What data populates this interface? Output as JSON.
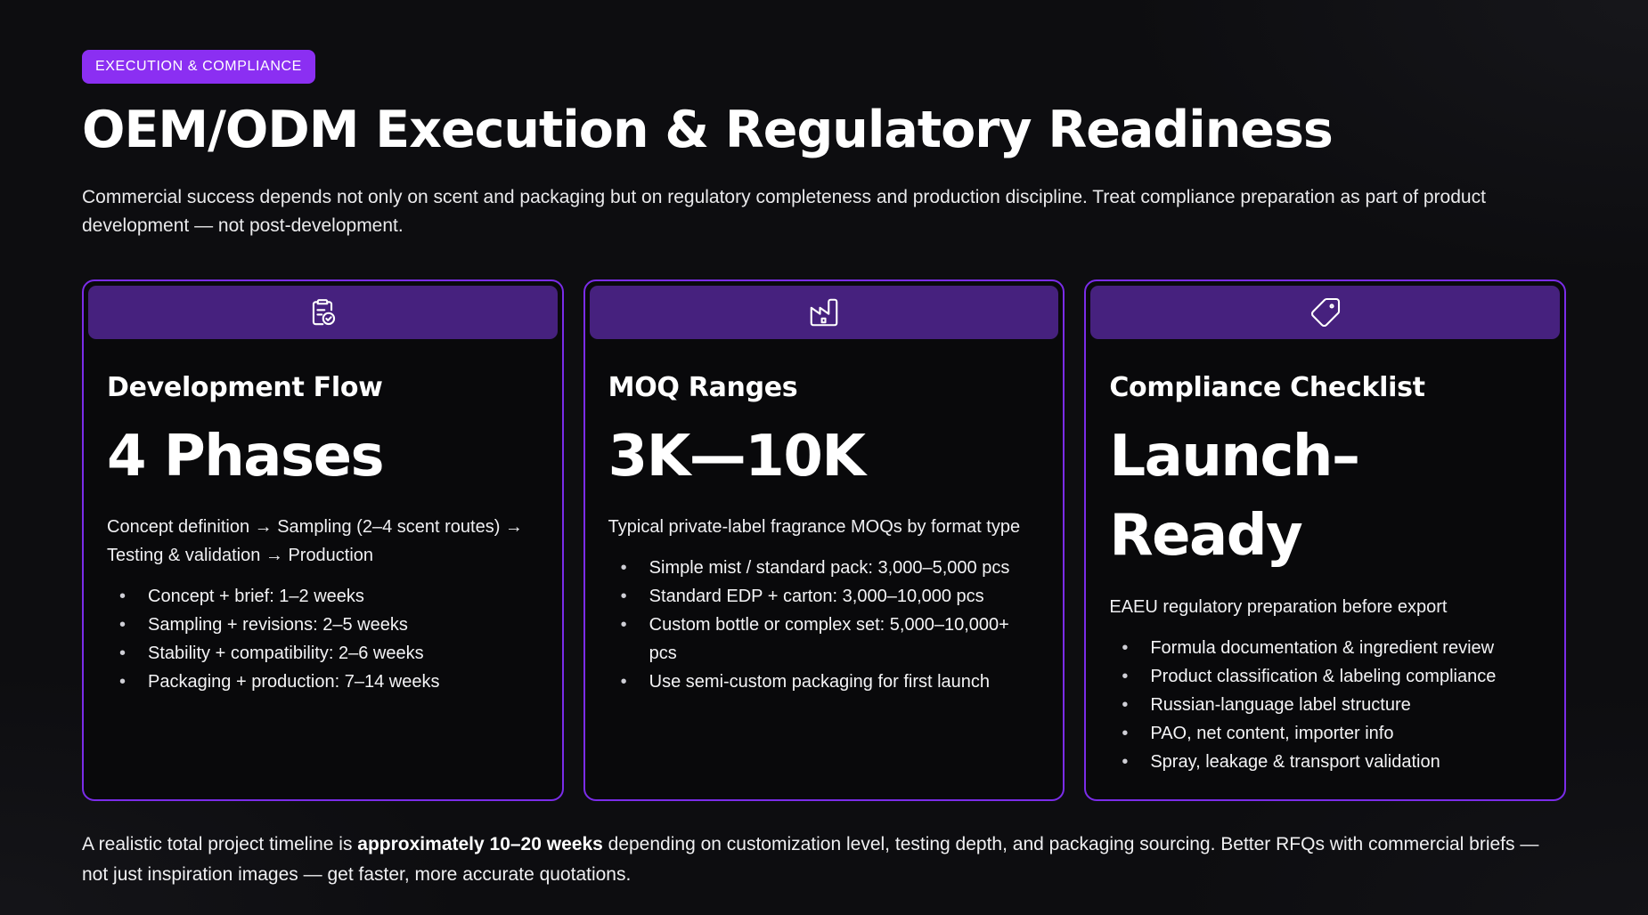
{
  "page": {
    "badge": "EXECUTION & COMPLIANCE",
    "title": "OEM/ODM Execution & Regulatory Readiness",
    "intro": "Commercial success depends not only on scent and packaging but on regulatory completeness and production discipline. Treat compliance preparation as part of product development — not post-development.",
    "footer": {
      "pre": "A realistic total project timeline is ",
      "bold": "approximately 10–20 weeks",
      "post": " depending on customization level, testing depth, and packaging sourcing. Better RFQs with commercial briefs — not just inspiration images — get faster, more accurate quotations."
    }
  },
  "colors": {
    "accent_badge": "#8b2ff2",
    "card_border": "#7b2ce9",
    "card_header": "#46217e",
    "card_background": "#09090b",
    "page_background": "#0d0d10",
    "text": "#ffffff"
  },
  "cards": [
    {
      "icon": "clipboard-check-icon",
      "title": "Development Flow",
      "stat": "4 Phases",
      "description": "Concept definition → Sampling (2–4 scent routes) → Testing & validation → Production",
      "bullets": [
        "Concept + brief: 1–2 weeks",
        "Sampling + revisions: 2–5 weeks",
        "Stability + compatibility: 2–6 weeks",
        "Packaging + production: 7–14 weeks"
      ]
    },
    {
      "icon": "factory-icon",
      "title": "MOQ Ranges",
      "stat": "3K—10K",
      "description": "Typical private-label fragrance MOQs by format type",
      "bullets": [
        "Simple mist / standard pack: 3,000–5,000 pcs",
        "Standard EDP + carton: 3,000–10,000 pcs",
        "Custom bottle or complex set: 5,000–10,000+ pcs",
        "Use semi-custom packaging for first launch"
      ]
    },
    {
      "icon": "tag-icon",
      "title": "Compliance Checklist",
      "stat": "Launch–\nReady",
      "description": "EAEU regulatory preparation before export",
      "bullets": [
        "Formula documentation & ingredient review",
        "Product classification & labeling compliance",
        "Russian-language label structure",
        "PAO, net content, importer info",
        "Spray, leakage & transport validation"
      ]
    }
  ]
}
